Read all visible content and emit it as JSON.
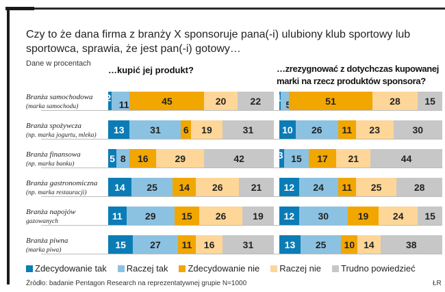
{
  "title": "Czy to że dana firma z branży X sponsoruje pana(-i) ulubiony klub sportowy lub sportowca, sprawia, że jest pan(-i) gotowy…",
  "unit_note": "Dane w procentach",
  "source": "Źródło: badanie Pentagon Research na reprezentatywnej grupie N=1000",
  "credit": "ŁR",
  "colors": {
    "zdecydowanie_tak": "#0b7cb6",
    "raczej_tak": "#8cc2e1",
    "zdecydowanie_nie": "#f2a600",
    "raczej_nie": "#fdd698",
    "trudno_powiedziec": "#c7c7c7",
    "frame": "#1a1a1a"
  },
  "chart_data": {
    "type": "bar",
    "orientation": "horizontal",
    "stacked": true,
    "normalized_to": 100,
    "title": "Czy to że dana firma z branży X sponsoruje pana(-i) ulubiony klub sportowy lub sportowca, sprawia, że jest pan(-i) gotowy…",
    "ylabel": "Dane w procentach",
    "legend": "bottom",
    "series_names": [
      "Zdecydowanie tak",
      "Raczej tak",
      "Zdecydowanie nie",
      "Raczej nie",
      "Trudno powiedzieć"
    ],
    "categories": [
      {
        "name": "Branża samochodowa",
        "sub": "(marka samochodu)"
      },
      {
        "name": "Branża spożywcza",
        "sub": "(np. marka jogurtu, mleka)"
      },
      {
        "name": "Branża finansowa",
        "sub": "(np. marka banku)"
      },
      {
        "name": "Branża gastronomiczna",
        "sub": "(np. marka restauracji)"
      },
      {
        "name": "Branża napojów",
        "sub": "gazowanych"
      },
      {
        "name": "Branża piwna",
        "sub": "(marka piwa)"
      }
    ],
    "panels": [
      {
        "title": "…kupić jej produkt?",
        "values": [
          [
            2,
            11,
            45,
            20,
            22
          ],
          [
            13,
            31,
            6,
            19,
            31
          ],
          [
            5,
            8,
            16,
            29,
            42
          ],
          [
            14,
            25,
            14,
            26,
            21
          ],
          [
            11,
            29,
            15,
            26,
            19
          ],
          [
            15,
            27,
            11,
            16,
            31
          ]
        ]
      },
      {
        "title": "…zrezygnować z dotychczas kupowanej marki na rzecz produktów sponsora?",
        "values": [
          [
            1,
            5,
            51,
            28,
            15
          ],
          [
            10,
            26,
            11,
            23,
            30
          ],
          [
            3,
            15,
            17,
            21,
            44
          ],
          [
            12,
            24,
            11,
            25,
            28
          ],
          [
            12,
            30,
            19,
            24,
            15
          ],
          [
            13,
            25,
            10,
            14,
            38
          ]
        ]
      }
    ]
  }
}
